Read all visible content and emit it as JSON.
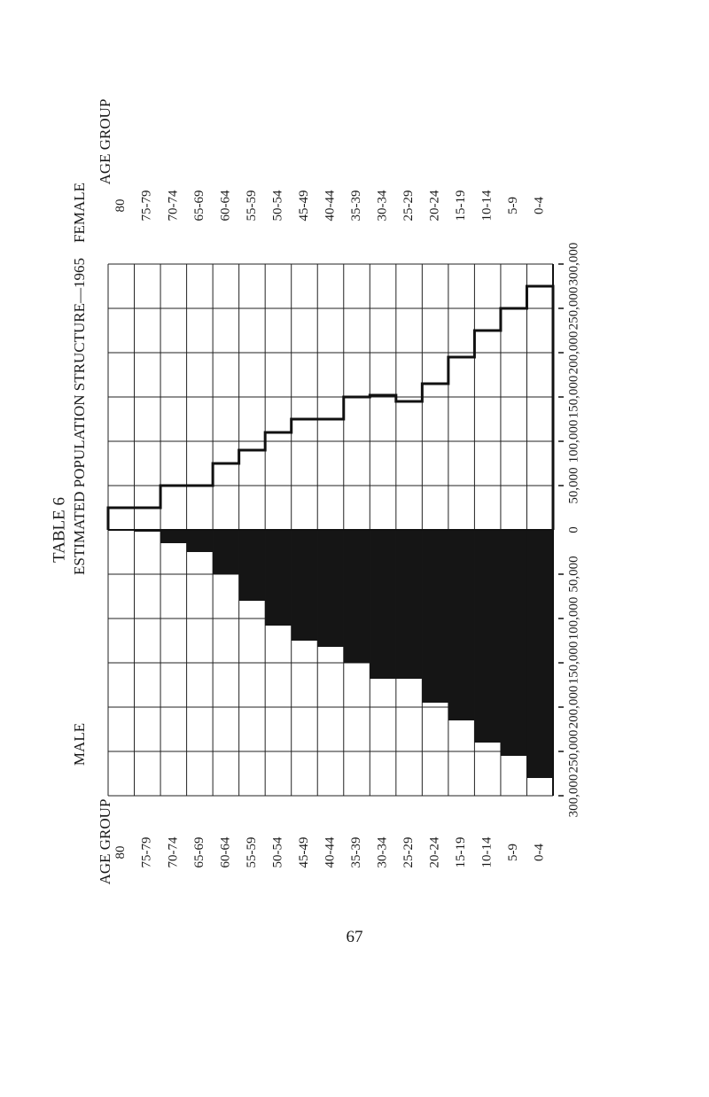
{
  "page": {
    "table_label": "TABLE 6",
    "title": "ESTIMATED POPULATION STRUCTURE—1965",
    "male_label": "MALE",
    "female_label": "FEMALE",
    "age_group_label": "AGE GROUP",
    "page_number": "67"
  },
  "chart_data": {
    "type": "bar",
    "orientation": "population-pyramid (rotated page)",
    "title": "ESTIMATED POPULATION STRUCTURE—1965",
    "categories": [
      "0-4",
      "5-9",
      "10-14",
      "15-19",
      "20-24",
      "25-29",
      "30-34",
      "35-39",
      "40-44",
      "45-49",
      "50-54",
      "55-59",
      "60-64",
      "65-69",
      "70-74",
      "75-79",
      "80"
    ],
    "series": [
      {
        "name": "MALE",
        "style": "solid",
        "values": [
          280000,
          255000,
          240000,
          215000,
          195000,
          168000,
          168000,
          150000,
          132000,
          125000,
          108000,
          80000,
          50000,
          25000,
          15000,
          2000,
          1000
        ]
      },
      {
        "name": "FEMALE",
        "style": "outline",
        "values": [
          275000,
          250000,
          225000,
          195000,
          165000,
          145000,
          152000,
          150000,
          125000,
          125000,
          110000,
          90000,
          75000,
          50000,
          50000,
          25000,
          25000
        ]
      }
    ],
    "axis": {
      "ticks": [
        0,
        50000,
        100000,
        150000,
        200000,
        250000,
        300000
      ],
      "tick_labels": [
        "0",
        "50,000",
        "100,000",
        "150,000",
        "200,000",
        "250,000",
        "300,000"
      ],
      "range": [
        0,
        300000
      ]
    },
    "grid": true
  }
}
